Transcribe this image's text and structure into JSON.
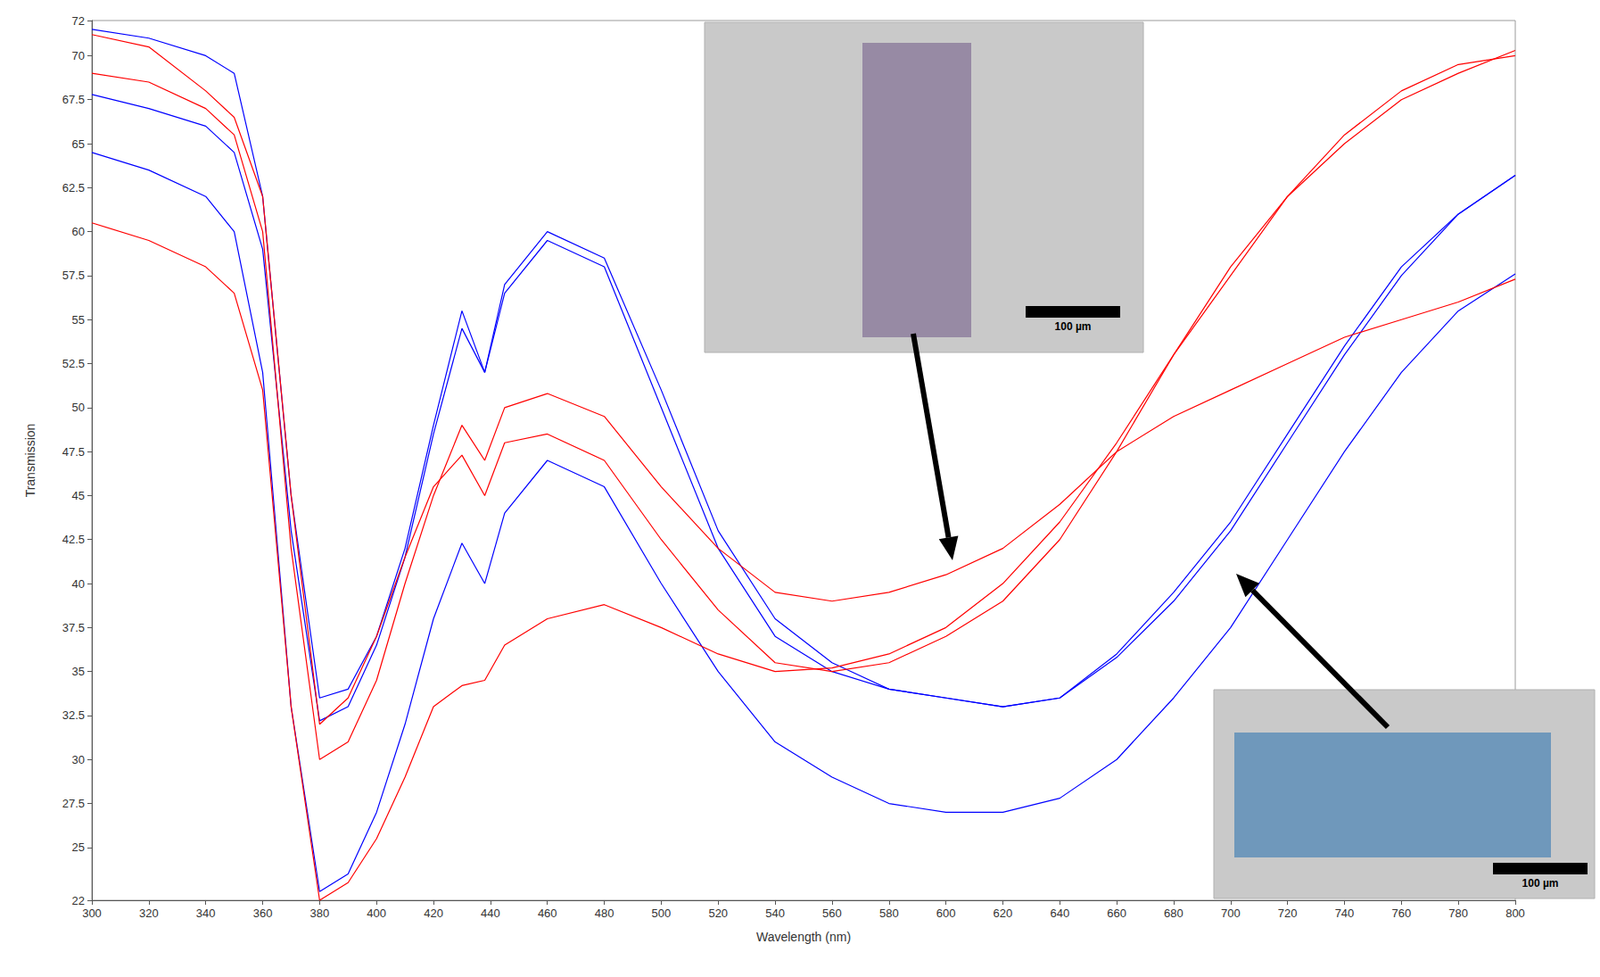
{
  "chart_data": {
    "type": "line",
    "x_label": "Wavelength (nm)",
    "y_label": "Transmission",
    "xlim": [
      300,
      800
    ],
    "xticks": [
      300,
      320,
      340,
      360,
      380,
      400,
      420,
      440,
      460,
      480,
      500,
      520,
      540,
      560,
      580,
      600,
      620,
      640,
      660,
      680,
      700,
      720,
      740,
      760,
      780,
      800
    ],
    "ylim": [
      22,
      72
    ],
    "yticks": [
      22,
      25,
      27.5,
      30,
      32.5,
      35,
      37.5,
      40,
      42.5,
      45,
      47.5,
      50,
      52.5,
      55,
      57.5,
      60,
      62.5,
      65,
      67.5,
      70,
      72
    ],
    "grid": false,
    "x": [
      300,
      320,
      340,
      350,
      360,
      370,
      380,
      390,
      400,
      410,
      420,
      430,
      438,
      445,
      460,
      480,
      500,
      520,
      540,
      560,
      580,
      600,
      620,
      640,
      660,
      680,
      700,
      720,
      740,
      760,
      780,
      800
    ],
    "series": [
      {
        "color": "#0000ff",
        "values": [
          71.5,
          71,
          70,
          69,
          62,
          45,
          33.5,
          34,
          37,
          42,
          49,
          55.5,
          52,
          57,
          60,
          58.5,
          51,
          43,
          38,
          35.5,
          34,
          33.5,
          33,
          33.5,
          36,
          39.5,
          43.5,
          48.5,
          53.5,
          58,
          61,
          63.2
        ]
      },
      {
        "color": "#0000ff",
        "values": [
          67.8,
          67,
          66,
          64.5,
          59,
          43,
          32.2,
          33,
          36.5,
          41.5,
          48.5,
          54.5,
          52,
          56.5,
          59.5,
          58,
          50,
          42,
          37,
          35,
          34,
          33.5,
          33,
          33.5,
          35.8,
          39,
          43,
          48,
          53,
          57.5,
          61,
          63.2
        ]
      },
      {
        "color": "#0000ff",
        "values": [
          64.5,
          63.5,
          62,
          60,
          52,
          33,
          22.5,
          23.5,
          27,
          32,
          38,
          42.3,
          40,
          44,
          47,
          45.5,
          40,
          35,
          31,
          29,
          27.5,
          27,
          27,
          27.8,
          30,
          33.5,
          37.5,
          42.5,
          47.5,
          52,
          55.5,
          57.6
        ]
      },
      {
        "color": "#ff0000",
        "values": [
          71.2,
          70.5,
          68,
          66.5,
          62,
          45,
          32,
          33.5,
          37,
          41.5,
          45.5,
          47.3,
          45,
          48,
          48.5,
          47,
          42.5,
          38.5,
          35.5,
          35,
          35.5,
          37,
          39,
          42.5,
          47.5,
          53,
          58,
          62,
          65,
          67.5,
          69,
          70.3
        ]
      },
      {
        "color": "#ff0000",
        "values": [
          69,
          68.5,
          67,
          65.5,
          60,
          42,
          30,
          31,
          34.5,
          40,
          45,
          49,
          47,
          50,
          50.8,
          49.5,
          45.5,
          42,
          39.5,
          39,
          39.5,
          40.5,
          42,
          44.5,
          47.5,
          49.5,
          51,
          52.5,
          54,
          55,
          56,
          57.3
        ]
      },
      {
        "color": "#ff0000",
        "values": [
          60.5,
          59.5,
          58,
          56.5,
          51,
          33,
          22,
          23,
          25.5,
          29,
          33,
          34.2,
          34.5,
          36.5,
          38,
          38.8,
          37.5,
          36,
          35,
          35.2,
          36,
          37.5,
          40,
          43.5,
          48,
          53,
          57.5,
          62,
          65.5,
          68,
          69.5,
          70
        ]
      }
    ],
    "insets": [
      {
        "color": "#8e7f9e",
        "scale_bar": "100 µm"
      },
      {
        "color": "#5f8fb8",
        "scale_bar": "100 µm"
      }
    ]
  }
}
